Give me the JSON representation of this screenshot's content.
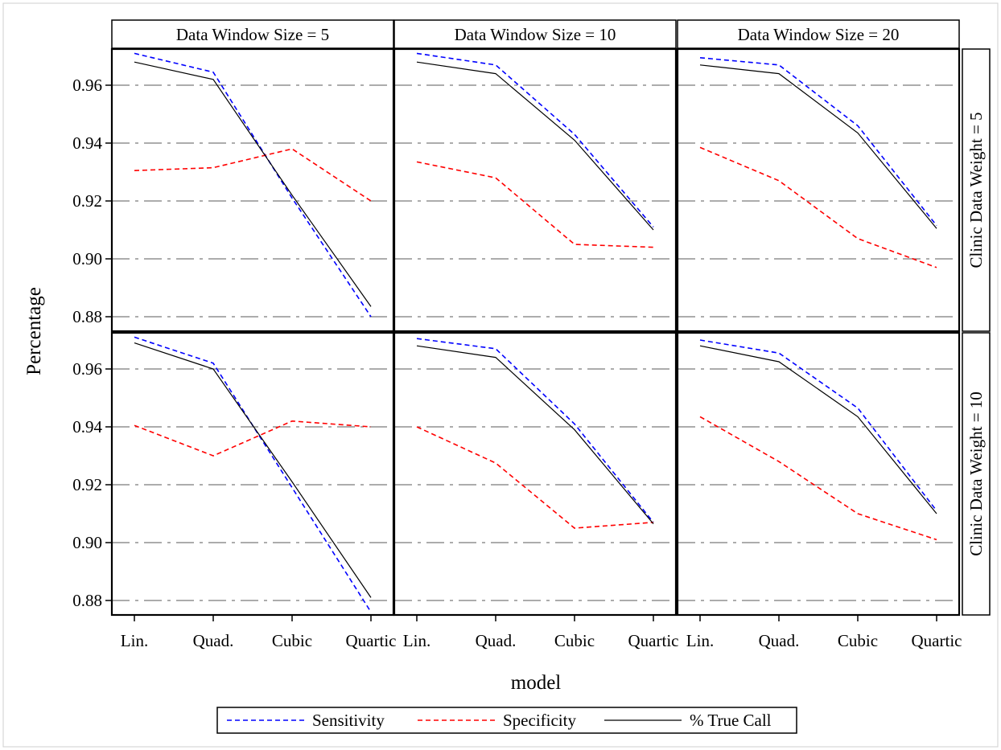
{
  "chart_data": {
    "type": "line",
    "layout": "panel-grid",
    "xlabel": "model",
    "ylabel": "Percentage",
    "categories": [
      "Lin.",
      "Quad.",
      "Cubic",
      "Quartic"
    ],
    "ylim": [
      0.875,
      0.9725
    ],
    "yticks": [
      "0.88",
      "0.90",
      "0.92",
      "0.94",
      "0.96"
    ],
    "grid": true,
    "legend_position": "bottom",
    "colors": {
      "Sensitivity": "#0000ff",
      "Specificity": "#ff0000",
      "% True Call": "#000000",
      "grid": "#7a7a7a"
    },
    "legend": [
      {
        "name": "Sensitivity",
        "color": "#0000ff",
        "style": "dashed"
      },
      {
        "name": "Specificity",
        "color": "#ff0000",
        "style": "dashed"
      },
      {
        "name": "% True Call",
        "color": "#000000",
        "style": "solid"
      }
    ],
    "column_headers": [
      "Data Window Size = 5",
      "Data Window Size = 10",
      "Data Window Size = 20"
    ],
    "row_headers": [
      "Clinic Data Weight = 5",
      "Clinic Data Weight = 10"
    ],
    "panels": [
      {
        "row": 0,
        "col": 0,
        "series": [
          {
            "name": "Sensitivity",
            "values": [
              0.971,
              0.9645,
              0.921,
              0.88
            ]
          },
          {
            "name": "Specificity",
            "values": [
              0.9305,
              0.9315,
              0.938,
              0.92
            ]
          },
          {
            "name": "% True Call",
            "values": [
              0.968,
              0.962,
              0.922,
              0.8835
            ]
          }
        ]
      },
      {
        "row": 0,
        "col": 1,
        "series": [
          {
            "name": "Sensitivity",
            "values": [
              0.971,
              0.967,
              0.943,
              0.911
            ]
          },
          {
            "name": "Specificity",
            "values": [
              0.9335,
              0.928,
              0.905,
              0.904
            ]
          },
          {
            "name": "% True Call",
            "values": [
              0.968,
              0.964,
              0.941,
              0.91
            ]
          }
        ]
      },
      {
        "row": 0,
        "col": 2,
        "series": [
          {
            "name": "Sensitivity",
            "values": [
              0.9695,
              0.967,
              0.946,
              0.9115
            ]
          },
          {
            "name": "Specificity",
            "values": [
              0.9385,
              0.927,
              0.907,
              0.897
            ]
          },
          {
            "name": "% True Call",
            "values": [
              0.967,
              0.964,
              0.9435,
              0.9105
            ]
          }
        ]
      },
      {
        "row": 1,
        "col": 0,
        "series": [
          {
            "name": "Sensitivity",
            "values": [
              0.971,
              0.962,
              0.919,
              0.876
            ]
          },
          {
            "name": "Specificity",
            "values": [
              0.9405,
              0.93,
              0.942,
              0.94
            ]
          },
          {
            "name": "% True Call",
            "values": [
              0.969,
              0.96,
              0.921,
              0.881
            ]
          }
        ]
      },
      {
        "row": 1,
        "col": 1,
        "series": [
          {
            "name": "Sensitivity",
            "values": [
              0.9705,
              0.967,
              0.941,
              0.907
            ]
          },
          {
            "name": "Specificity",
            "values": [
              0.94,
              0.9275,
              0.905,
              0.907
            ]
          },
          {
            "name": "% True Call",
            "values": [
              0.968,
              0.964,
              0.939,
              0.9065
            ]
          }
        ]
      },
      {
        "row": 1,
        "col": 2,
        "series": [
          {
            "name": "Sensitivity",
            "values": [
              0.97,
              0.9655,
              0.9465,
              0.911
            ]
          },
          {
            "name": "Specificity",
            "values": [
              0.9435,
              0.928,
              0.91,
              0.901
            ]
          },
          {
            "name": "% True Call",
            "values": [
              0.968,
              0.9625,
              0.9435,
              0.91
            ]
          }
        ]
      }
    ]
  }
}
